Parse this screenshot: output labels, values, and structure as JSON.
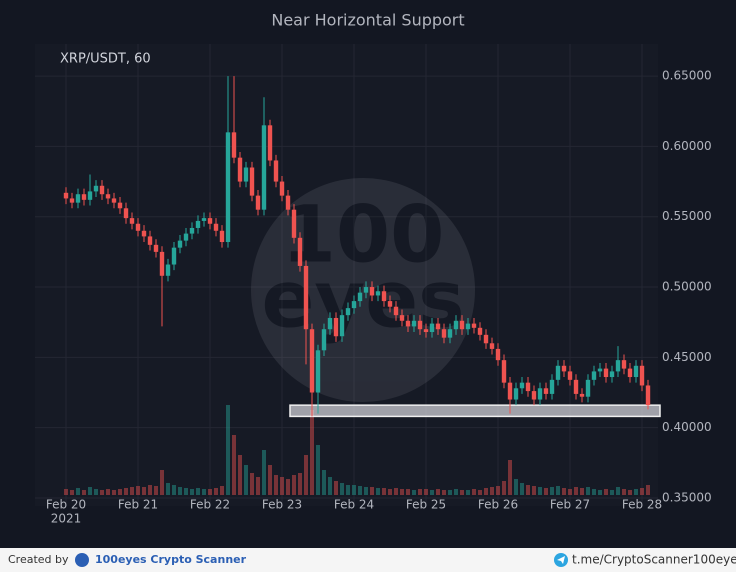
{
  "chart_data": {
    "type": "candlestick",
    "title": "Near Horizontal Support",
    "subtitle": "XRP/USDT, 60",
    "watermark": [
      "100",
      "eyes"
    ],
    "year_label": "2021",
    "categories": [
      "Feb 20",
      null,
      null,
      null,
      null,
      null,
      null,
      null,
      null,
      null,
      null,
      null,
      "Feb 21",
      null,
      null,
      null,
      null,
      null,
      null,
      null,
      null,
      null,
      null,
      null,
      "Feb 22",
      null,
      null,
      null,
      null,
      null,
      null,
      null,
      null,
      null,
      null,
      null,
      "Feb 23",
      null,
      null,
      null,
      null,
      null,
      null,
      null,
      null,
      null,
      null,
      null,
      "Feb 24",
      null,
      null,
      null,
      null,
      null,
      null,
      null,
      null,
      null,
      null,
      null,
      "Feb 25",
      null,
      null,
      null,
      null,
      null,
      null,
      null,
      null,
      null,
      null,
      null,
      "Feb 26",
      null,
      null,
      null,
      null,
      null,
      null,
      null,
      null,
      null,
      null,
      null,
      "Feb 27",
      null,
      null,
      null,
      null,
      null,
      null,
      null,
      null,
      null,
      null,
      null,
      "Feb 28",
      null
    ],
    "open": [
      0.567,
      0.563,
      0.56,
      0.566,
      0.562,
      0.568,
      0.572,
      0.566,
      0.563,
      0.56,
      0.556,
      0.549,
      0.545,
      0.54,
      0.536,
      0.53,
      0.525,
      0.508,
      0.516,
      0.528,
      0.533,
      0.538,
      0.542,
      0.547,
      0.549,
      0.545,
      0.54,
      0.532,
      0.61,
      0.592,
      0.575,
      0.585,
      0.565,
      0.555,
      0.615,
      0.59,
      0.575,
      0.565,
      0.555,
      0.535,
      0.515,
      0.47,
      0.425,
      0.455,
      0.47,
      0.478,
      0.465,
      0.48,
      0.485,
      0.49,
      0.496,
      0.5,
      0.494,
      0.497,
      0.49,
      0.486,
      0.48,
      0.476,
      0.472,
      0.476,
      0.47,
      0.468,
      0.474,
      0.47,
      0.464,
      0.47,
      0.476,
      0.47,
      0.474,
      0.471,
      0.466,
      0.46,
      0.456,
      0.448,
      0.432,
      0.42,
      0.428,
      0.432,
      0.426,
      0.42,
      0.428,
      0.424,
      0.434,
      0.444,
      0.44,
      0.434,
      0.424,
      0.422,
      0.434,
      0.44,
      0.442,
      0.436,
      0.44,
      0.448,
      0.442,
      0.436,
      0.444,
      0.43
    ],
    "high": [
      0.571,
      0.567,
      0.57,
      0.57,
      0.58,
      0.576,
      0.576,
      0.57,
      0.567,
      0.564,
      0.56,
      0.553,
      0.549,
      0.544,
      0.54,
      0.534,
      0.529,
      0.52,
      0.532,
      0.537,
      0.542,
      0.546,
      0.551,
      0.553,
      0.553,
      0.549,
      0.544,
      0.65,
      0.65,
      0.596,
      0.589,
      0.589,
      0.569,
      0.635,
      0.619,
      0.594,
      0.579,
      0.569,
      0.559,
      0.539,
      0.519,
      0.474,
      0.459,
      0.474,
      0.482,
      0.482,
      0.484,
      0.489,
      0.494,
      0.5,
      0.504,
      0.504,
      0.501,
      0.501,
      0.494,
      0.49,
      0.484,
      0.48,
      0.48,
      0.48,
      0.474,
      0.478,
      0.478,
      0.474,
      0.474,
      0.48,
      0.48,
      0.478,
      0.478,
      0.475,
      0.47,
      0.464,
      0.46,
      0.452,
      0.436,
      0.432,
      0.436,
      0.436,
      0.43,
      0.432,
      0.432,
      0.438,
      0.448,
      0.448,
      0.444,
      0.438,
      0.428,
      0.438,
      0.444,
      0.446,
      0.446,
      0.444,
      0.458,
      0.452,
      0.446,
      0.448,
      0.448,
      0.434
    ],
    "low": [
      0.559,
      0.556,
      0.556,
      0.558,
      0.558,
      0.564,
      0.562,
      0.559,
      0.556,
      0.552,
      0.545,
      0.541,
      0.536,
      0.532,
      0.526,
      0.521,
      0.472,
      0.504,
      0.512,
      0.524,
      0.529,
      0.534,
      0.538,
      0.543,
      0.541,
      0.536,
      0.528,
      0.528,
      0.588,
      0.571,
      0.571,
      0.561,
      0.551,
      0.551,
      0.586,
      0.571,
      0.561,
      0.551,
      0.531,
      0.511,
      0.445,
      0.408,
      0.41,
      0.451,
      0.466,
      0.461,
      0.461,
      0.476,
      0.481,
      0.486,
      0.492,
      0.49,
      0.49,
      0.486,
      0.482,
      0.476,
      0.472,
      0.468,
      0.468,
      0.466,
      0.464,
      0.464,
      0.466,
      0.46,
      0.46,
      0.466,
      0.466,
      0.466,
      0.467,
      0.462,
      0.456,
      0.452,
      0.444,
      0.428,
      0.41,
      0.416,
      0.424,
      0.422,
      0.416,
      0.416,
      0.42,
      0.42,
      0.43,
      0.436,
      0.43,
      0.42,
      0.418,
      0.418,
      0.43,
      0.436,
      0.432,
      0.432,
      0.436,
      0.438,
      0.432,
      0.432,
      0.426,
      0.413
    ],
    "close": [
      0.563,
      0.56,
      0.566,
      0.562,
      0.568,
      0.572,
      0.566,
      0.563,
      0.56,
      0.556,
      0.549,
      0.545,
      0.54,
      0.536,
      0.53,
      0.525,
      0.508,
      0.516,
      0.528,
      0.533,
      0.538,
      0.542,
      0.547,
      0.549,
      0.545,
      0.54,
      0.532,
      0.61,
      0.592,
      0.575,
      0.585,
      0.565,
      0.555,
      0.615,
      0.59,
      0.575,
      0.565,
      0.555,
      0.535,
      0.515,
      0.47,
      0.425,
      0.455,
      0.47,
      0.478,
      0.465,
      0.48,
      0.485,
      0.49,
      0.496,
      0.5,
      0.494,
      0.497,
      0.49,
      0.486,
      0.48,
      0.476,
      0.472,
      0.476,
      0.47,
      0.468,
      0.474,
      0.47,
      0.464,
      0.47,
      0.476,
      0.47,
      0.474,
      0.471,
      0.466,
      0.46,
      0.456,
      0.448,
      0.432,
      0.42,
      0.428,
      0.432,
      0.426,
      0.42,
      0.428,
      0.424,
      0.434,
      0.444,
      0.44,
      0.434,
      0.424,
      0.422,
      0.434,
      0.44,
      0.442,
      0.436,
      0.44,
      0.448,
      0.442,
      0.436,
      0.444,
      0.43,
      0.416
    ],
    "volume": [
      6,
      5,
      7,
      5,
      8,
      6,
      5,
      6,
      5,
      6,
      7,
      8,
      9,
      8,
      10,
      9,
      25,
      12,
      10,
      8,
      7,
      6,
      7,
      6,
      6,
      7,
      9,
      90,
      60,
      40,
      30,
      22,
      18,
      45,
      30,
      20,
      18,
      16,
      20,
      22,
      40,
      85,
      50,
      25,
      18,
      14,
      12,
      10,
      10,
      9,
      8,
      8,
      7,
      7,
      6,
      7,
      6,
      6,
      5,
      6,
      6,
      5,
      6,
      5,
      5,
      6,
      5,
      5,
      6,
      5,
      7,
      8,
      9,
      14,
      35,
      16,
      12,
      10,
      9,
      8,
      7,
      8,
      9,
      7,
      6,
      8,
      7,
      8,
      6,
      5,
      6,
      5,
      8,
      6,
      5,
      6,
      7,
      10
    ],
    "up_color": "#26a69a",
    "down_color": "#ef5350",
    "ylim": [
      0.345,
      0.665
    ],
    "yticks": [
      {
        "value": 0.35,
        "label": "0.35000"
      },
      {
        "value": 0.4,
        "label": "0.40000"
      },
      {
        "value": 0.45,
        "label": "0.45000"
      },
      {
        "value": 0.5,
        "label": "0.50000"
      },
      {
        "value": 0.55,
        "label": "0.55000"
      },
      {
        "value": 0.6,
        "label": "0.60000"
      },
      {
        "value": 0.65,
        "label": "0.65000"
      }
    ],
    "grid": true,
    "support_zone": {
      "low": 0.408,
      "high": 0.416
    }
  },
  "footer": {
    "created_by": "Created by",
    "brand": "100eyes Crypto Scanner",
    "link": "t.me/CryptoScanner100eyes"
  }
}
